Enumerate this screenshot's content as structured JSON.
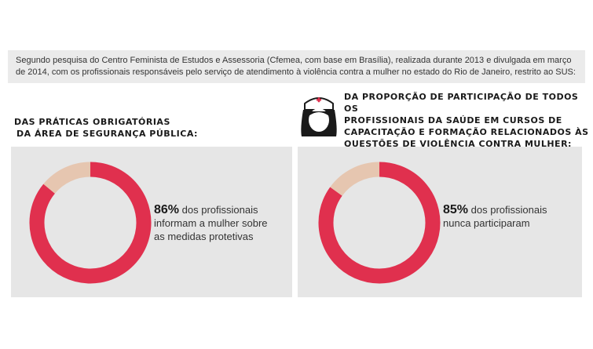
{
  "intro": {
    "text": "Segundo pesquisa do Centro Feminista de Estudos e Assessoria (Cfemea, com base em Brasília), realizada durante 2013 e divulgada em março de 2014, com os profissionais responsáveis pelo serviço de atendimento à violência contra a mulher no estado do Rio de Janeiro, restrito ao SUS:"
  },
  "left": {
    "title_lines": [
      "DAS PRÁTICAS OBRIGATÓRIAS",
      "DA ÁREA DE SEGURANÇA PÚBLICA:"
    ],
    "percent_label": "86%",
    "text_lines": [
      "dos profissionais",
      "informam a mulher sobre",
      "as medidas protetivas"
    ]
  },
  "right": {
    "title_lines": [
      "DA PROPORÇÃO DE PARTICIPAÇÃO DE TODOS OS",
      "PROFISSIONAIS DA SAÚDE EM CURSOS DE",
      "CAPACITAÇÃO E FORMAÇÃO RELACIONADOS ÀS",
      "QUESTÕES DE VIOLÊNCIA CONTRA MULHER:"
    ],
    "percent_label": "85%",
    "text_lines": [
      "dos profissionais",
      "nunca participaram"
    ]
  },
  "colors": {
    "primary": "#e0304e",
    "secondary": "#e6c6b0",
    "panel": "#e6e6e6"
  },
  "icons": {
    "nurse": "nurse-icon"
  },
  "chart_data": [
    {
      "type": "pie",
      "categories": [
        "",
        ""
      ],
      "values": [
        86,
        14
      ]
    },
    {
      "type": "pie",
      "categories": [
        "",
        ""
      ],
      "values": [
        85,
        15
      ]
    }
  ]
}
